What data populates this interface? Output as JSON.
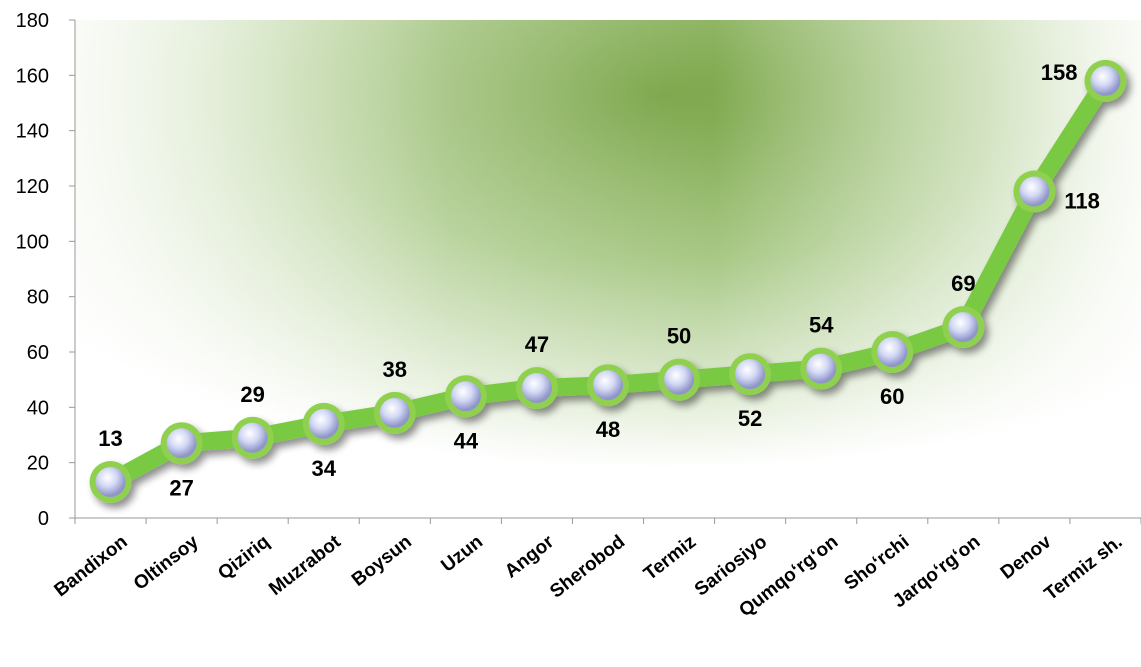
{
  "chart_data": {
    "type": "line",
    "title": "",
    "xlabel": "",
    "ylabel": "",
    "categories": [
      "Bandixon",
      "Oltinsoy",
      "Qiziriq",
      "Muzrabot",
      "Boysun",
      "Uzun",
      "Angor",
      "Sherobod",
      "Termiz",
      "Sariosiyo",
      "Qumqo‘rg‘on",
      "Sho‘rchi",
      "Jarqo‘rg‘on",
      "Denov",
      "Termiz sh."
    ],
    "series": [
      {
        "values": [
          13,
          27,
          29,
          34,
          38,
          44,
          47,
          48,
          50,
          52,
          54,
          60,
          69,
          118,
          158
        ]
      }
    ],
    "ylim": [
      0,
      180
    ],
    "yticks": [
      0,
      20,
      40,
      60,
      80,
      100,
      120,
      140,
      160,
      180
    ],
    "label_positions": [
      "above",
      "below",
      "above",
      "below",
      "above",
      "below",
      "above",
      "below",
      "above",
      "below",
      "above",
      "below",
      "above",
      "right",
      "left"
    ],
    "grid": false,
    "legend": "none",
    "colors": {
      "line": "#7ac943",
      "marker_fill": "#c9cff0",
      "marker_ring": "#8fd14f",
      "background_dark": "#8bb25a",
      "background_light": "#ffffff"
    }
  }
}
